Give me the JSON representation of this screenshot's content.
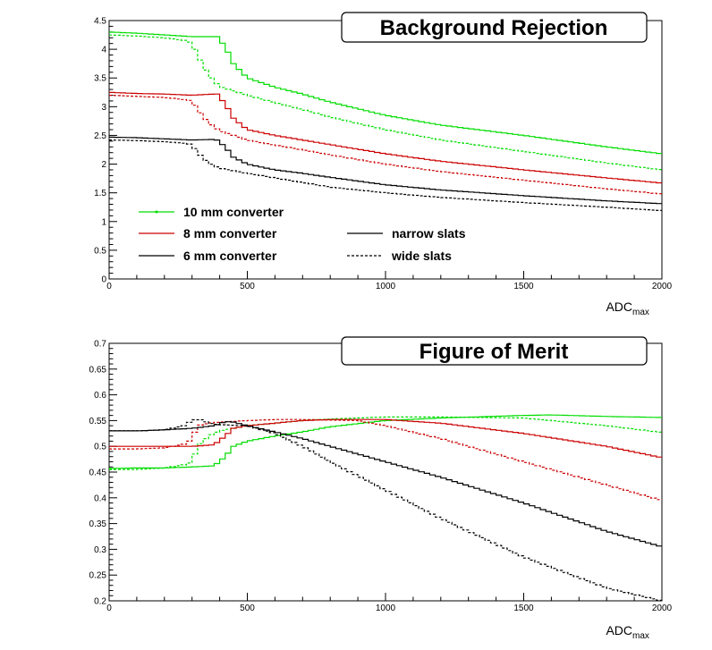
{
  "chart_data": [
    {
      "type": "line",
      "title": "Background Rejection",
      "xlabel": "ADC",
      "xlabel_sub": "max",
      "ylabel": "",
      "xlim": [
        0,
        2000
      ],
      "ylim": [
        0,
        4.5
      ],
      "xticks": [
        0,
        500,
        1000,
        1500,
        2000
      ],
      "xtick_labels": [
        "0",
        "500",
        "1000",
        "1500",
        "2000"
      ],
      "yticks": [
        0,
        0.5,
        1,
        1.5,
        2,
        2.5,
        3,
        3.5,
        4,
        4.5
      ],
      "ytick_labels": [
        "0",
        "0.5",
        "1",
        "1.5",
        "2",
        "2.5",
        "3",
        "3.5",
        "4",
        "4.5"
      ],
      "grid": false,
      "legend": {
        "placement": "bottom-left",
        "entries": [
          {
            "label": "10 mm converter",
            "color": "#00dd00",
            "style": "solid"
          },
          {
            "label": "8 mm converter",
            "color": "#cc0000",
            "style": "solid"
          },
          {
            "label": "6 mm converter",
            "color": "#000000",
            "style": "solid"
          },
          {
            "label": "narrow slats",
            "color": "#000000",
            "style": "solid"
          },
          {
            "label": "wide slats",
            "color": "#000000",
            "style": "dashed"
          }
        ]
      },
      "series": [
        {
          "color": "#00dd00",
          "style": "solid",
          "x": [
            0,
            100,
            200,
            300,
            380,
            390,
            420,
            450,
            500,
            600,
            700,
            800,
            1000,
            1200,
            1500,
            1800,
            2000
          ],
          "y": [
            4.3,
            4.28,
            4.25,
            4.22,
            4.22,
            4.22,
            4.05,
            3.75,
            3.5,
            3.34,
            3.22,
            3.08,
            2.85,
            2.68,
            2.5,
            2.3,
            2.18
          ]
        },
        {
          "color": "#00dd00",
          "style": "dashed",
          "x": [
            0,
            100,
            200,
            280,
            300,
            320,
            360,
            400,
            500,
            600,
            700,
            800,
            1000,
            1200,
            1500,
            1800,
            2000
          ],
          "y": [
            4.25,
            4.23,
            4.2,
            4.15,
            4.1,
            3.9,
            3.55,
            3.35,
            3.2,
            3.07,
            2.95,
            2.82,
            2.6,
            2.42,
            2.22,
            2.02,
            1.9
          ]
        },
        {
          "color": "#cc0000",
          "style": "solid",
          "x": [
            0,
            100,
            200,
            300,
            380,
            390,
            420,
            450,
            500,
            600,
            700,
            800,
            1000,
            1200,
            1500,
            1800,
            2000
          ],
          "y": [
            3.25,
            3.23,
            3.22,
            3.2,
            3.22,
            3.22,
            3.05,
            2.8,
            2.6,
            2.5,
            2.42,
            2.34,
            2.18,
            2.05,
            1.9,
            1.76,
            1.67
          ]
        },
        {
          "color": "#cc0000",
          "style": "dashed",
          "x": [
            0,
            100,
            200,
            280,
            300,
            320,
            360,
            400,
            500,
            600,
            700,
            800,
            1000,
            1200,
            1500,
            1800,
            2000
          ],
          "y": [
            3.2,
            3.18,
            3.16,
            3.12,
            3.1,
            2.95,
            2.72,
            2.58,
            2.42,
            2.33,
            2.25,
            2.16,
            2.0,
            1.87,
            1.72,
            1.57,
            1.48
          ]
        },
        {
          "color": "#000000",
          "style": "solid",
          "x": [
            0,
            100,
            200,
            300,
            380,
            390,
            420,
            450,
            500,
            600,
            700,
            800,
            1000,
            1200,
            1500,
            1800,
            2000
          ],
          "y": [
            2.47,
            2.46,
            2.44,
            2.42,
            2.43,
            2.42,
            2.3,
            2.12,
            2.0,
            1.9,
            1.84,
            1.77,
            1.64,
            1.55,
            1.45,
            1.36,
            1.31
          ]
        },
        {
          "color": "#000000",
          "style": "dashed",
          "x": [
            0,
            100,
            200,
            280,
            300,
            320,
            360,
            400,
            500,
            600,
            700,
            800,
            1000,
            1200,
            1500,
            1800,
            2000
          ],
          "y": [
            2.42,
            2.41,
            2.39,
            2.36,
            2.34,
            2.2,
            2.02,
            1.93,
            1.84,
            1.76,
            1.68,
            1.6,
            1.5,
            1.42,
            1.33,
            1.25,
            1.19
          ]
        }
      ]
    },
    {
      "type": "line",
      "title": "Figure of Merit",
      "xlabel": "ADC",
      "xlabel_sub": "max",
      "ylabel": "",
      "xlim": [
        0,
        2000
      ],
      "ylim": [
        0.2,
        0.7
      ],
      "xticks": [
        0,
        500,
        1000,
        1500,
        2000
      ],
      "xtick_labels": [
        "0",
        "500",
        "1000",
        "1500",
        "2000"
      ],
      "yticks": [
        0.2,
        0.25,
        0.3,
        0.35,
        0.4,
        0.45,
        0.5,
        0.55,
        0.6,
        0.65,
        0.7
      ],
      "ytick_labels": [
        "0.2",
        "0.25",
        "0.3",
        "0.35",
        "0.4",
        "0.45",
        "0.5",
        "0.55",
        "0.6",
        "0.65",
        "0.7"
      ],
      "grid": false,
      "series": [
        {
          "color": "#00dd00",
          "style": "solid",
          "x": [
            0,
            100,
            200,
            300,
            380,
            420,
            450,
            500,
            600,
            700,
            800,
            1000,
            1200,
            1500,
            1600,
            1800,
            2000
          ],
          "y": [
            0.457,
            0.458,
            0.458,
            0.46,
            0.462,
            0.48,
            0.5,
            0.51,
            0.52,
            0.528,
            0.538,
            0.55,
            0.555,
            0.56,
            0.561,
            0.558,
            0.556
          ]
        },
        {
          "color": "#00dd00",
          "style": "dashed",
          "x": [
            0,
            100,
            200,
            280,
            300,
            320,
            360,
            400,
            500,
            600,
            700,
            800,
            1000,
            1200,
            1500,
            1800,
            2000
          ],
          "y": [
            0.455,
            0.455,
            0.458,
            0.465,
            0.47,
            0.5,
            0.52,
            0.53,
            0.54,
            0.545,
            0.55,
            0.553,
            0.557,
            0.557,
            0.555,
            0.54,
            0.527
          ]
        },
        {
          "color": "#cc0000",
          "style": "solid",
          "x": [
            0,
            100,
            200,
            300,
            380,
            420,
            450,
            500,
            600,
            700,
            800,
            900,
            1000,
            1200,
            1500,
            1800,
            2000
          ],
          "y": [
            0.5,
            0.5,
            0.5,
            0.5,
            0.503,
            0.52,
            0.535,
            0.54,
            0.545,
            0.55,
            0.552,
            0.552,
            0.552,
            0.545,
            0.525,
            0.5,
            0.478
          ]
        },
        {
          "color": "#cc0000",
          "style": "dashed",
          "x": [
            0,
            100,
            200,
            280,
            300,
            320,
            360,
            400,
            500,
            600,
            700,
            800,
            900,
            1000,
            1200,
            1500,
            1800,
            2000
          ],
          "y": [
            0.495,
            0.495,
            0.497,
            0.505,
            0.515,
            0.54,
            0.545,
            0.547,
            0.55,
            0.552,
            0.552,
            0.551,
            0.55,
            0.54,
            0.515,
            0.47,
            0.425,
            0.395
          ]
        },
        {
          "color": "#000000",
          "style": "solid",
          "x": [
            0,
            100,
            200,
            300,
            380,
            420,
            450,
            500,
            600,
            700,
            800,
            1000,
            1200,
            1500,
            1800,
            2000
          ],
          "y": [
            0.53,
            0.53,
            0.532,
            0.535,
            0.54,
            0.548,
            0.547,
            0.54,
            0.528,
            0.515,
            0.5,
            0.47,
            0.44,
            0.39,
            0.335,
            0.305
          ]
        },
        {
          "color": "#000000",
          "style": "dashed",
          "x": [
            0,
            100,
            200,
            270,
            300,
            320,
            340,
            360,
            400,
            500,
            600,
            700,
            800,
            1000,
            1200,
            1500,
            1800,
            2000
          ],
          "y": [
            0.53,
            0.53,
            0.532,
            0.54,
            0.55,
            0.553,
            0.55,
            0.545,
            0.542,
            0.54,
            0.525,
            0.5,
            0.47,
            0.415,
            0.36,
            0.285,
            0.225,
            0.2
          ]
        }
      ]
    }
  ]
}
